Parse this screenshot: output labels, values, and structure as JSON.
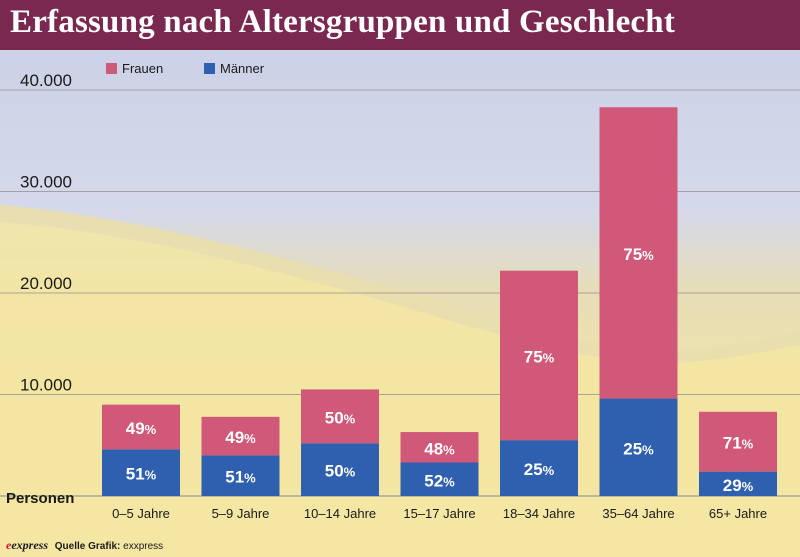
{
  "header": {
    "title": "Erfassung nach Altersgruppen und Geschlecht"
  },
  "footer": {
    "logo": "express",
    "source_label": "Quelle Grafik:",
    "source_value": "exxpress"
  },
  "colors": {
    "header": "#7a2850",
    "frauen": "#d05878",
    "maenner": "#2f5faf"
  },
  "chart_data": {
    "type": "bar",
    "stacked": true,
    "title": "Erfassung nach Altersgruppen und Geschlecht",
    "ylabel": "Personen",
    "ylim": [
      0,
      40000
    ],
    "yticks": [
      {
        "value": 10000,
        "label": "10.000"
      },
      {
        "value": 20000,
        "label": "20.000"
      },
      {
        "value": 30000,
        "label": "30.000"
      },
      {
        "value": 40000,
        "label": "40.000"
      }
    ],
    "legend_position": "top-left",
    "categories": [
      "0–5 Jahre",
      "5–9 Jahre",
      "10–14 Jahre",
      "15–17 Jahre",
      "18–34 Jahre",
      "35–64 Jahre",
      "65+ Jahre"
    ],
    "series": [
      {
        "name": "Männer",
        "color": "#2f5faf",
        "values": [
          4600,
          4000,
          5200,
          3300,
          5500,
          9600,
          2400
        ],
        "labels": [
          "51",
          "51",
          "50",
          "52",
          "25",
          "25",
          "29"
        ]
      },
      {
        "name": "Frauen",
        "color": "#d05878",
        "values": [
          4400,
          3800,
          5300,
          3000,
          16700,
          28700,
          5900
        ],
        "labels": [
          "49",
          "49",
          "50",
          "48",
          "75",
          "75",
          "71"
        ]
      }
    ],
    "percent_symbol": "%"
  }
}
